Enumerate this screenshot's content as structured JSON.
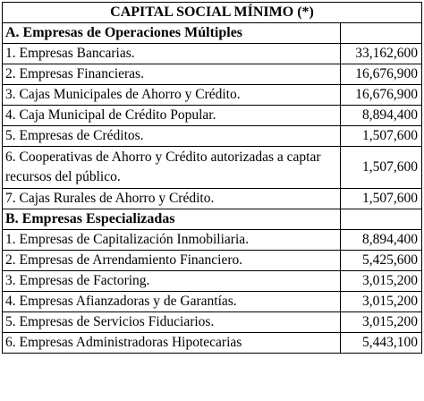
{
  "title": "CAPITAL SOCIAL MÍNIMO (*)",
  "sections": [
    {
      "header": "A. Empresas de Operaciones Múltiples",
      "rows": [
        {
          "label": "1. Empresas Bancarias.",
          "value": "33,162,600"
        },
        {
          "label": "2. Empresas Financieras.",
          "value": "16,676,900"
        },
        {
          "label": "3. Cajas Municipales de Ahorro y Crédito.",
          "value": "16,676,900"
        },
        {
          "label": "4. Caja Municipal de Crédito Popular.",
          "value": "8,894,400"
        },
        {
          "label": "5. Empresas de Créditos.",
          "value": "1,507,600"
        },
        {
          "label": "6. Cooperativas de Ahorro y Crédito autorizadas a captar recursos del público.",
          "value": "1,507,600"
        },
        {
          "label": "7. Cajas Rurales de Ahorro y Crédito.",
          "value": "1,507,600"
        }
      ]
    },
    {
      "header": "B. Empresas Especializadas",
      "rows": [
        {
          "label": "1. Empresas de Capitalización Inmobiliaria.",
          "value": "8,894,400"
        },
        {
          "label": "2. Empresas de Arrendamiento Financiero.",
          "value": "5,425,600"
        },
        {
          "label": "3. Empresas de Factoring.",
          "value": "3,015,200"
        },
        {
          "label": "4. Empresas Afianzadoras y de Garantías.",
          "value": "3,015,200"
        },
        {
          "label": "5. Empresas de Servicios Fiduciarios.",
          "value": "3,015,200"
        },
        {
          "label": "6. Empresas Administradoras Hipotecarias",
          "value": "5,443,100"
        }
      ]
    }
  ]
}
